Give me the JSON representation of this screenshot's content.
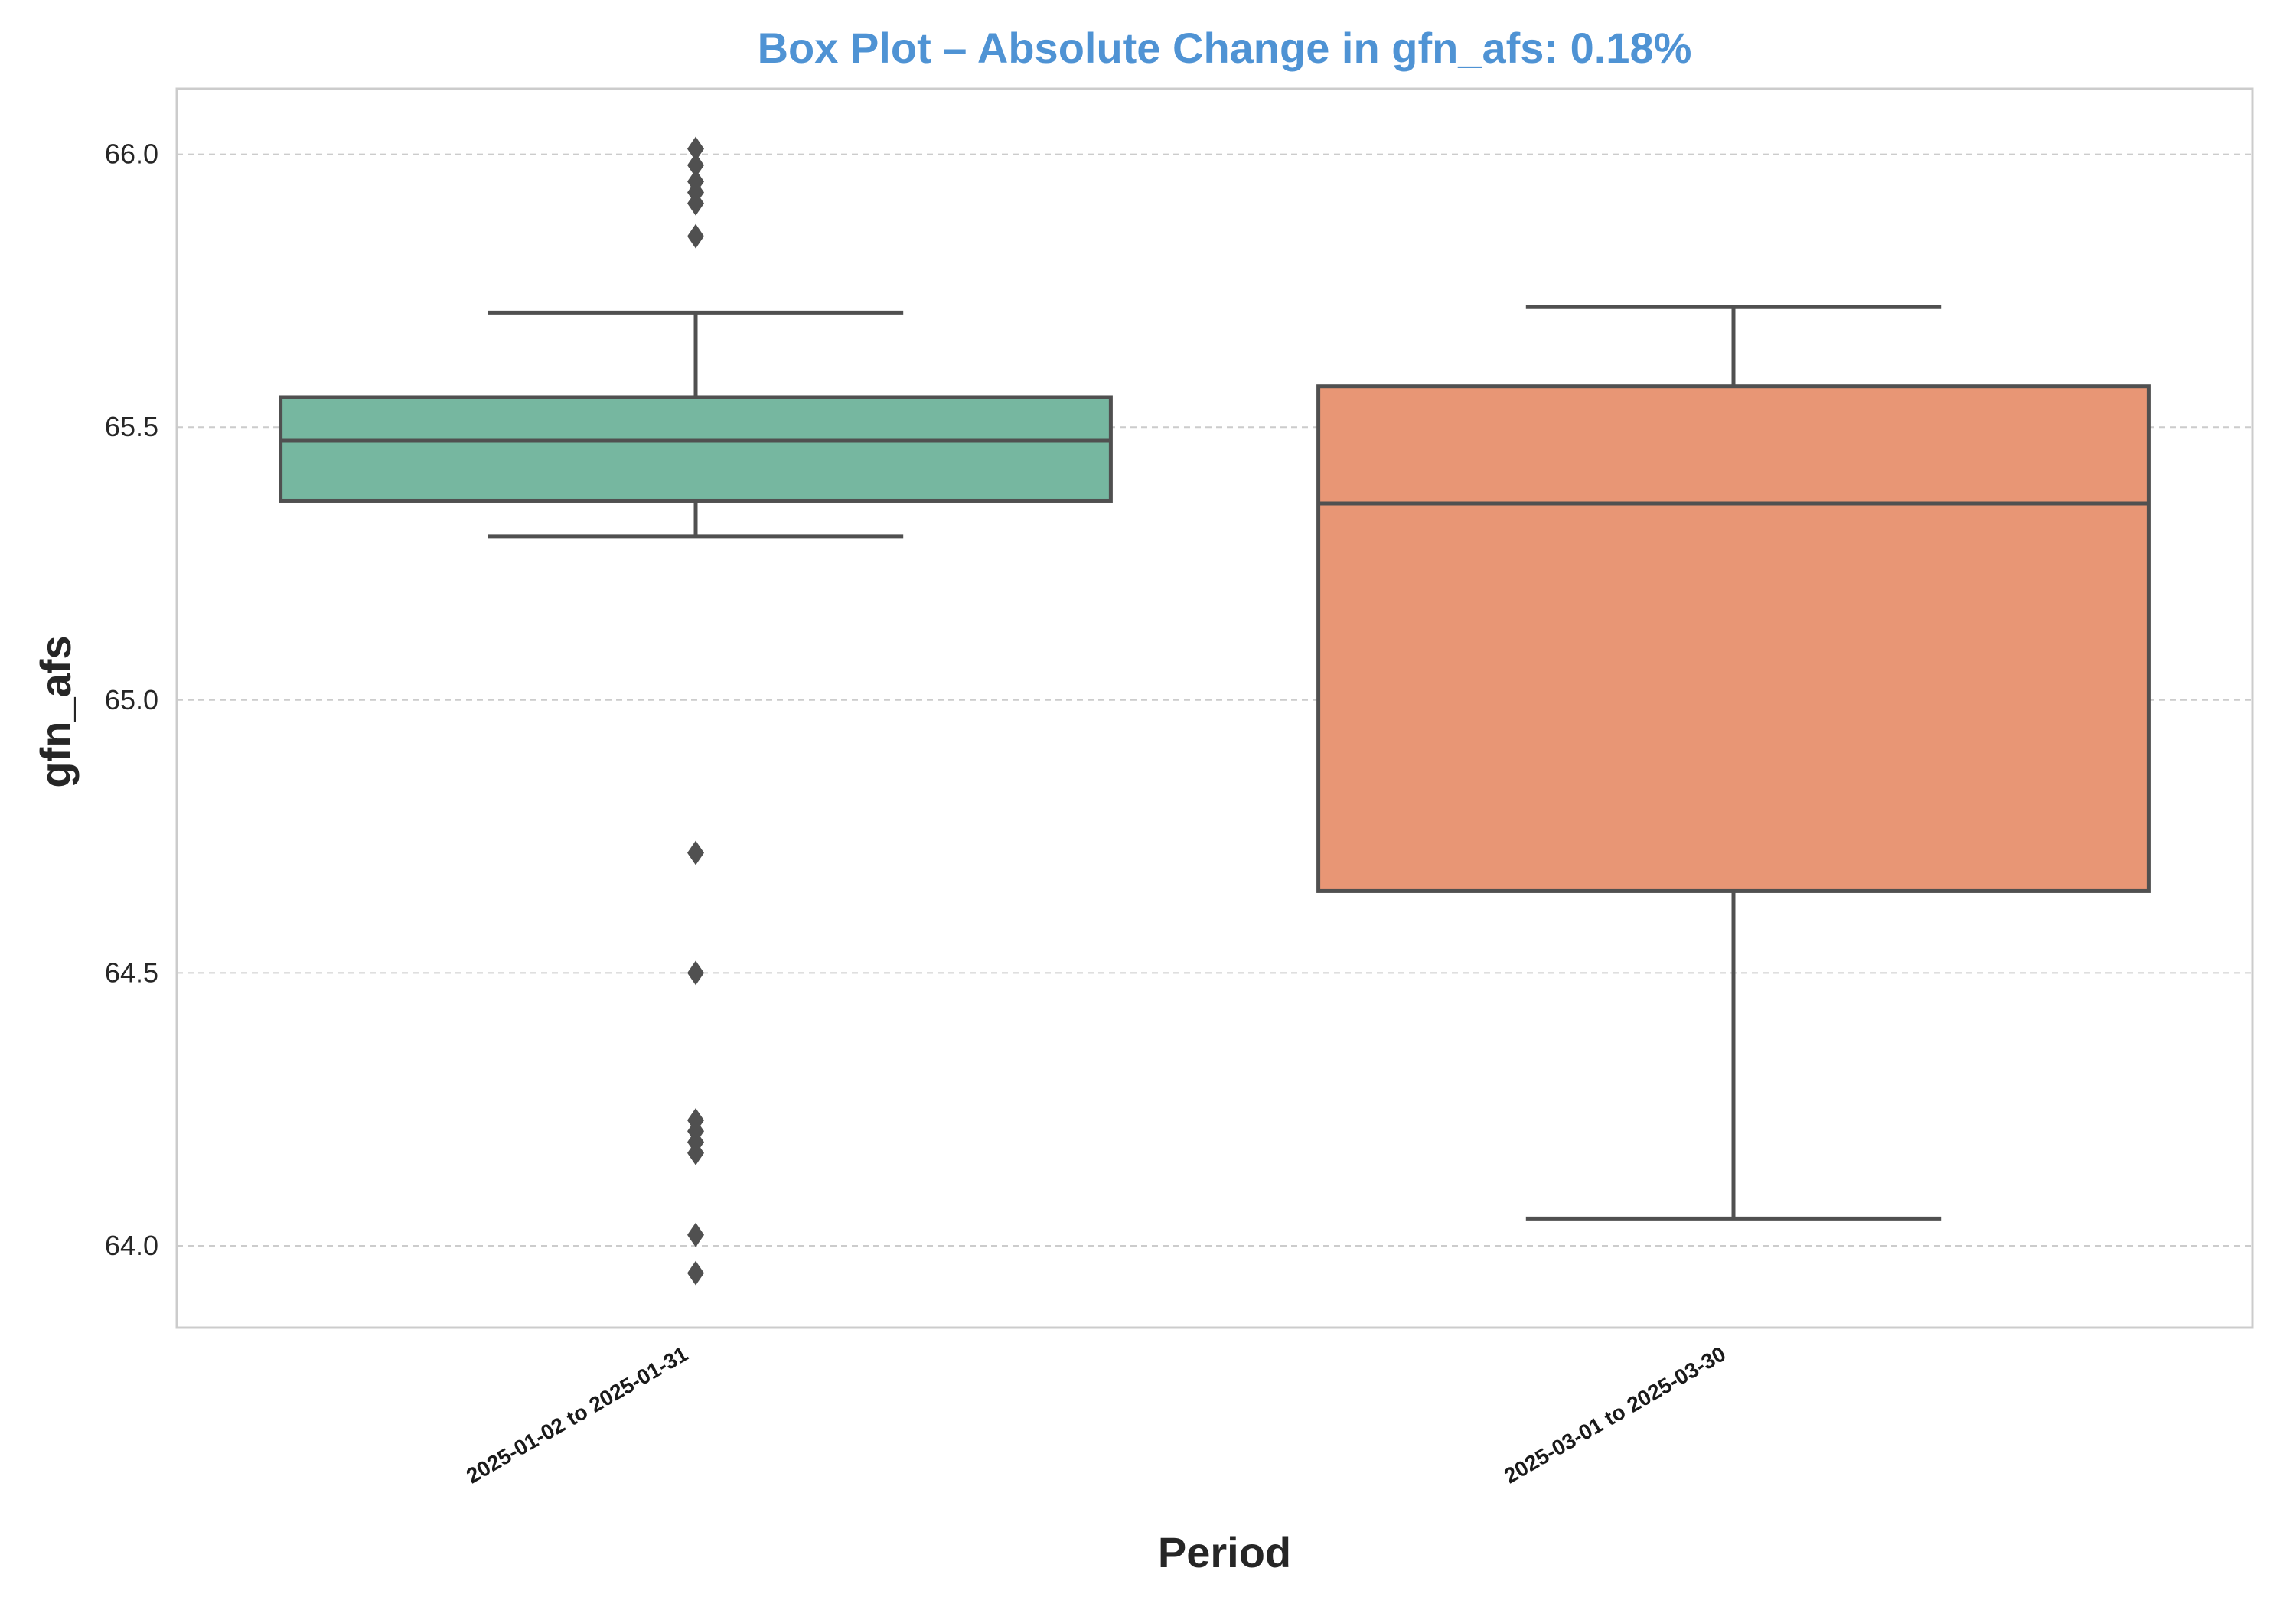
{
  "chart_data": {
    "type": "box",
    "title": "Box Plot – Absolute Change in gfn_afs: 0.18%",
    "xlabel": "Period",
    "ylabel": "gfn_afs",
    "ylim": [
      63.85,
      66.12
    ],
    "yticks": [
      64.0,
      64.5,
      65.0,
      65.5,
      66.0
    ],
    "ytick_labels": [
      "64.0",
      "64.5",
      "65.0",
      "65.5",
      "66.0"
    ],
    "grid": true,
    "legend": "none",
    "categories": [
      "2025-01-02 to 2025-01-31",
      "2025-03-01 to 2025-03-30"
    ],
    "boxes": [
      {
        "category": "2025-01-02 to 2025-01-31",
        "whisker_low": 65.3,
        "q1": 65.365,
        "median": 65.475,
        "q3": 65.555,
        "whisker_high": 65.71,
        "outliers": [
          66.01,
          65.98,
          65.95,
          65.93,
          65.91,
          65.85,
          64.72,
          64.5,
          64.23,
          64.21,
          64.19,
          64.17,
          64.02,
          63.95
        ],
        "color": "#76b7a0"
      },
      {
        "category": "2025-03-01 to 2025-03-30",
        "whisker_low": 64.05,
        "q1": 64.65,
        "median": 65.36,
        "q3": 65.575,
        "whisker_high": 65.72,
        "outliers": [],
        "color": "#e89675"
      }
    ],
    "colors": {
      "title": "#4f93d4",
      "line": "#505050",
      "grid": "#cccccc",
      "frame": "#cccccc"
    }
  }
}
